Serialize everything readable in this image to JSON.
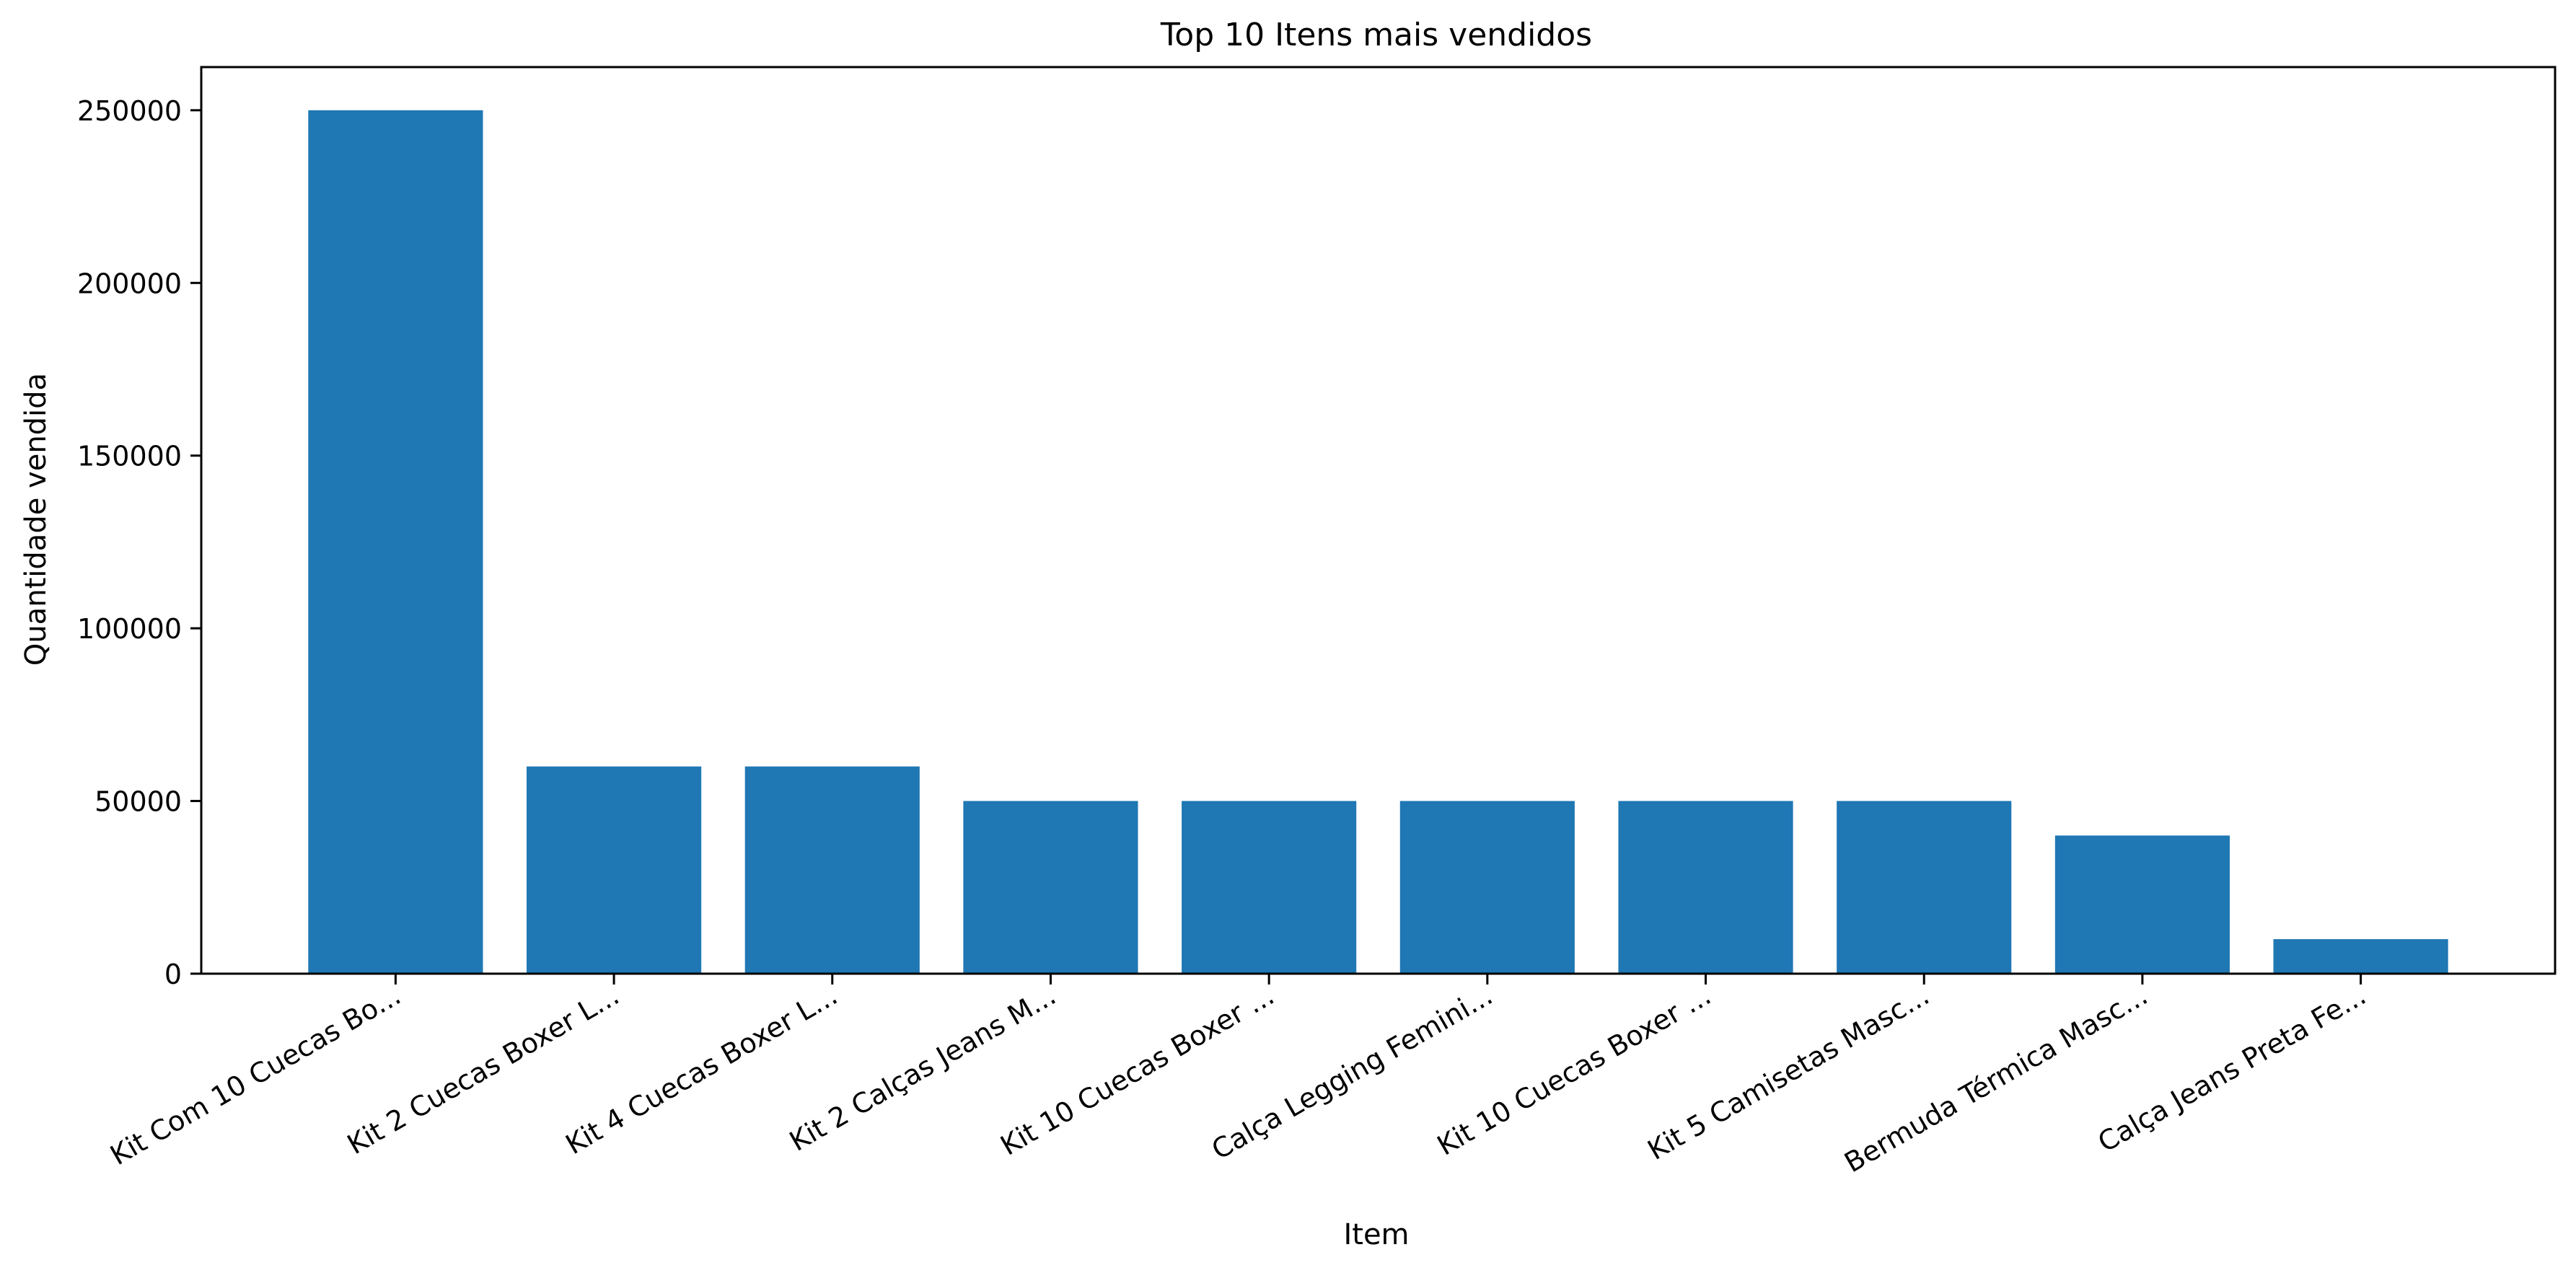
{
  "chart_data": {
    "type": "bar",
    "title": "Top 10 Itens mais vendidos",
    "xlabel": "Item",
    "ylabel": "Quantidade vendida",
    "categories": [
      "Kit Com 10 Cuecas Bo...",
      "Kit 2 Cuecas Boxer L...",
      "Kit 4 Cuecas Boxer L...",
      "Kit 2 Calças Jeans M...",
      "Kit 10 Cuecas Boxer ...",
      "Calça Legging Femini...",
      "Kit 10 Cuecas Boxer ...",
      "Kit 5 Camisetas Masc...",
      "Bermuda Térmica Masc...",
      "Calça Jeans Preta Fe..."
    ],
    "values": [
      250000,
      60000,
      60000,
      50000,
      50000,
      50000,
      50000,
      50000,
      40000,
      10000
    ],
    "ylim": [
      0,
      262500
    ],
    "yticks": [
      0,
      50000,
      100000,
      150000,
      200000,
      250000
    ],
    "bar_color": "#1f77b4",
    "grid": false,
    "legend": false
  }
}
